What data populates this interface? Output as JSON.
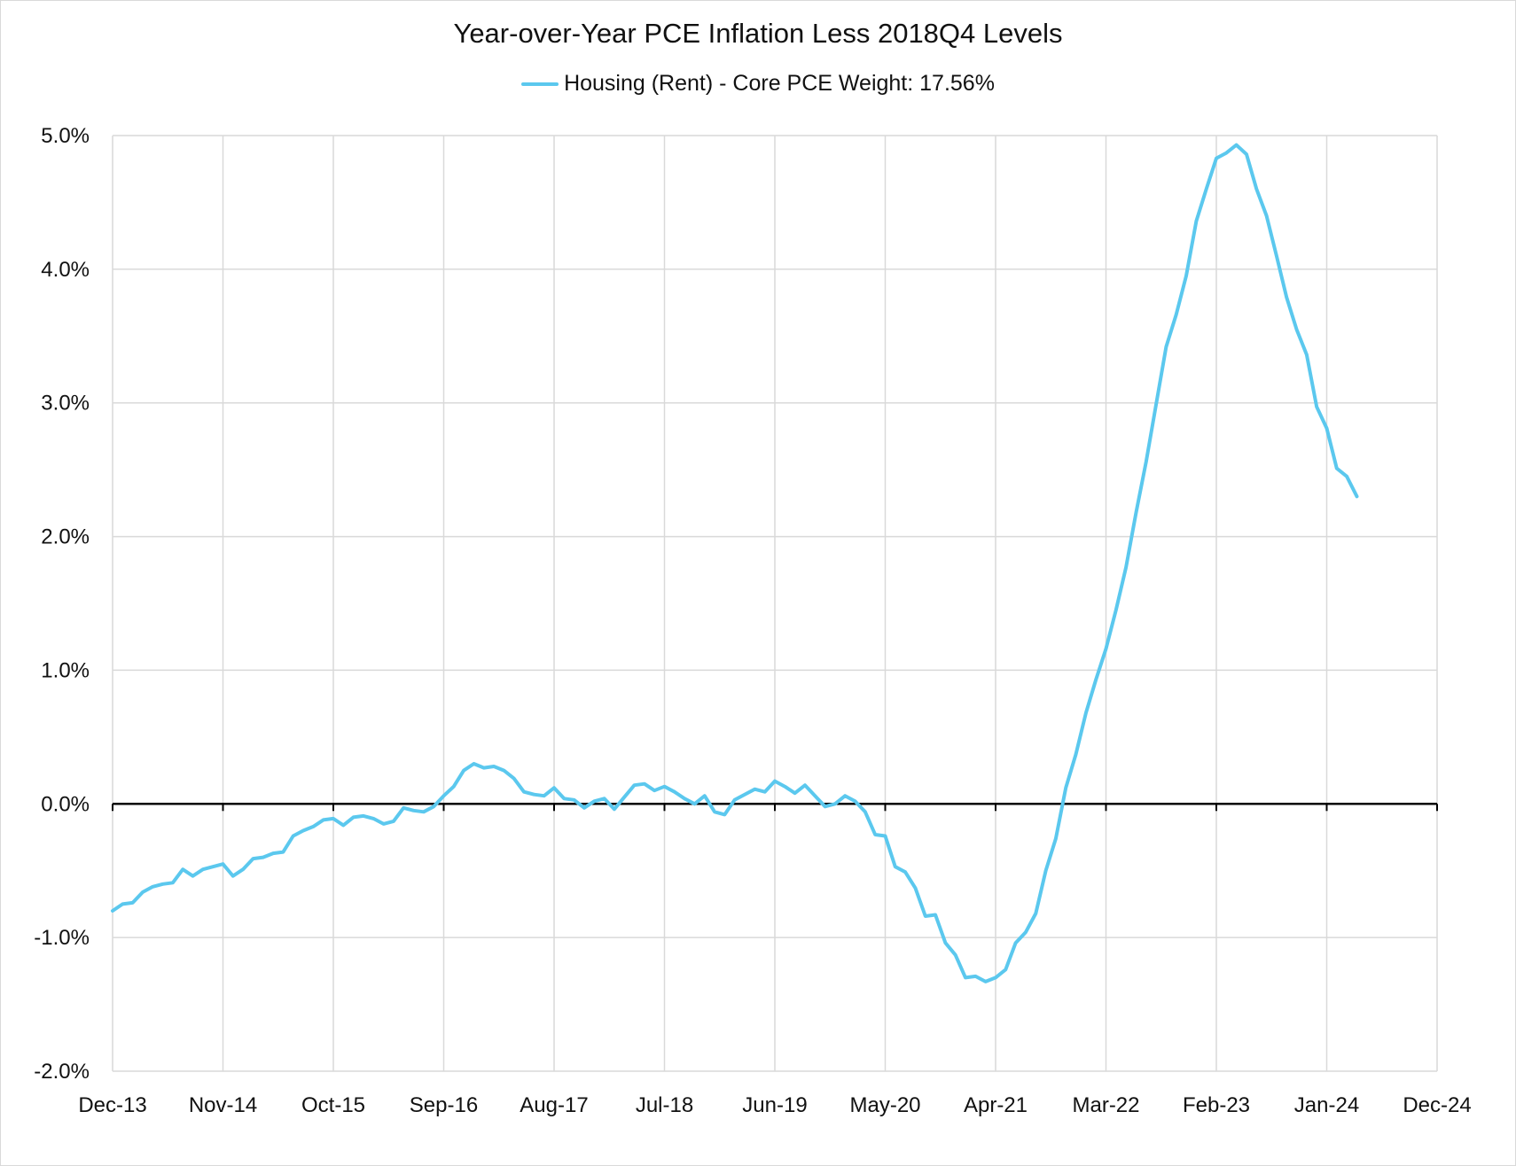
{
  "chart_data": {
    "type": "line",
    "title": "Year-over-Year PCE Inflation Less 2018Q4 Levels",
    "xlabel": "",
    "ylabel": "",
    "legend_position": "top-center",
    "grid": true,
    "ylim": [
      -0.02,
      0.05
    ],
    "yticks": [
      {
        "value": 0.05,
        "label": "5.0%"
      },
      {
        "value": 0.04,
        "label": "4.0%"
      },
      {
        "value": 0.03,
        "label": "3.0%"
      },
      {
        "value": 0.02,
        "label": "2.0%"
      },
      {
        "value": 0.01,
        "label": "1.0%"
      },
      {
        "value": 0.0,
        "label": "0.0%"
      },
      {
        "value": -0.01,
        "label": "-1.0%"
      },
      {
        "value": -0.02,
        "label": "-2.0%"
      }
    ],
    "xlim": [
      "2013-12",
      "2024-12"
    ],
    "xticks": [
      {
        "value": "2013-12",
        "label": "Dec-13"
      },
      {
        "value": "2014-11",
        "label": "Nov-14"
      },
      {
        "value": "2015-10",
        "label": "Oct-15"
      },
      {
        "value": "2016-09",
        "label": "Sep-16"
      },
      {
        "value": "2017-08",
        "label": "Aug-17"
      },
      {
        "value": "2018-07",
        "label": "Jul-18"
      },
      {
        "value": "2019-06",
        "label": "Jun-19"
      },
      {
        "value": "2020-05",
        "label": "May-20"
      },
      {
        "value": "2021-04",
        "label": "Apr-21"
      },
      {
        "value": "2022-03",
        "label": "Mar-22"
      },
      {
        "value": "2023-02",
        "label": "Feb-23"
      },
      {
        "value": "2024-01",
        "label": "Jan-24"
      },
      {
        "value": "2024-12",
        "label": "Dec-24"
      }
    ],
    "series": [
      {
        "name": "Housing (Rent) - Core PCE Weight: 17.56%",
        "color": "#5BC8EE",
        "x": [
          "2013-12",
          "2014-01",
          "2014-02",
          "2014-03",
          "2014-04",
          "2014-05",
          "2014-06",
          "2014-07",
          "2014-08",
          "2014-09",
          "2014-10",
          "2014-11",
          "2014-12",
          "2015-01",
          "2015-02",
          "2015-03",
          "2015-04",
          "2015-05",
          "2015-06",
          "2015-07",
          "2015-08",
          "2015-09",
          "2015-10",
          "2015-11",
          "2015-12",
          "2016-01",
          "2016-02",
          "2016-03",
          "2016-04",
          "2016-05",
          "2016-06",
          "2016-07",
          "2016-08",
          "2016-09",
          "2016-10",
          "2016-11",
          "2016-12",
          "2017-01",
          "2017-02",
          "2017-03",
          "2017-04",
          "2017-05",
          "2017-06",
          "2017-07",
          "2017-08",
          "2017-09",
          "2017-10",
          "2017-11",
          "2017-12",
          "2018-01",
          "2018-02",
          "2018-03",
          "2018-04",
          "2018-05",
          "2018-06",
          "2018-07",
          "2018-08",
          "2018-09",
          "2018-10",
          "2018-11",
          "2018-12",
          "2019-01",
          "2019-02",
          "2019-03",
          "2019-04",
          "2019-05",
          "2019-06",
          "2019-07",
          "2019-08",
          "2019-09",
          "2019-10",
          "2019-11",
          "2019-12",
          "2020-01",
          "2020-02",
          "2020-03",
          "2020-04",
          "2020-05",
          "2020-06",
          "2020-07",
          "2020-08",
          "2020-09",
          "2020-10",
          "2020-11",
          "2020-12",
          "2021-01",
          "2021-02",
          "2021-03",
          "2021-04",
          "2021-05",
          "2021-06",
          "2021-07",
          "2021-08",
          "2021-09",
          "2021-10",
          "2021-11",
          "2021-12",
          "2022-01",
          "2022-02",
          "2022-03",
          "2022-04",
          "2022-05",
          "2022-06",
          "2022-07",
          "2022-08",
          "2022-09",
          "2022-10",
          "2022-11",
          "2022-12",
          "2023-01",
          "2023-02",
          "2023-03",
          "2023-04",
          "2023-05",
          "2023-06",
          "2023-07",
          "2023-08",
          "2023-09",
          "2023-10",
          "2023-11",
          "2023-12",
          "2024-01",
          "2024-02",
          "2024-03",
          "2024-04"
        ],
        "values": [
          -0.008,
          -0.0075,
          -0.0074,
          -0.0066,
          -0.0062,
          -0.006,
          -0.0059,
          -0.0049,
          -0.0054,
          -0.0049,
          -0.0047,
          -0.0045,
          -0.0054,
          -0.0049,
          -0.0041,
          -0.004,
          -0.0037,
          -0.0036,
          -0.0024,
          -0.002,
          -0.0017,
          -0.0012,
          -0.0011,
          -0.0016,
          -0.001,
          -0.0009,
          -0.0011,
          -0.0015,
          -0.0013,
          -0.0003,
          -0.0005,
          -0.0006,
          -0.0002,
          0.0006,
          0.0013,
          0.0025,
          0.003,
          0.0027,
          0.0028,
          0.0025,
          0.0019,
          0.0009,
          0.0007,
          0.0006,
          0.0012,
          0.0004,
          0.0003,
          -0.0003,
          0.0002,
          0.0004,
          -0.0004,
          0.0005,
          0.0014,
          0.0015,
          0.001,
          0.0013,
          0.0009,
          0.0004,
          0.0,
          0.0006,
          -0.0006,
          -0.0008,
          0.0003,
          0.0007,
          0.0011,
          0.0009,
          0.0017,
          0.0013,
          0.0008,
          0.0014,
          0.0006,
          -0.0002,
          0.0,
          0.0006,
          0.0002,
          -0.0006,
          -0.0023,
          -0.0024,
          -0.0047,
          -0.0051,
          -0.0063,
          -0.0084,
          -0.0083,
          -0.0104,
          -0.0113,
          -0.013,
          -0.0129,
          -0.0133,
          -0.013,
          -0.0124,
          -0.0104,
          -0.0096,
          -0.0082,
          -0.005,
          -0.0026,
          0.0012,
          0.0037,
          0.0068,
          0.0093,
          0.0116,
          0.0145,
          0.0177,
          0.0218,
          0.0256,
          0.0299,
          0.0342,
          0.0366,
          0.0395,
          0.0436,
          0.046,
          0.0483,
          0.0487,
          0.0493,
          0.0486,
          0.046,
          0.044,
          0.041,
          0.0379,
          0.0355,
          0.0336,
          0.0297,
          0.0281,
          0.0251,
          0.0245,
          0.023
        ]
      }
    ]
  }
}
